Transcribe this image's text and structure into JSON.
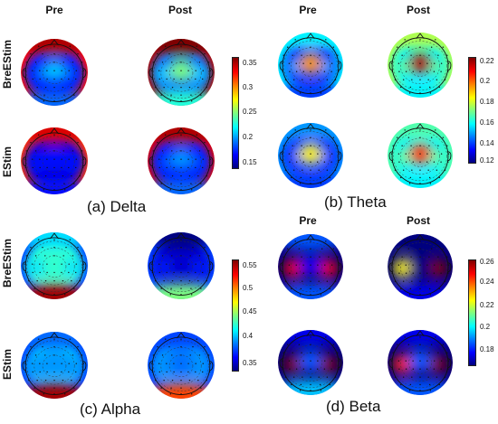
{
  "columns": {
    "pre": "Pre",
    "post": "Post"
  },
  "rows": {
    "breestim": "BreEStim",
    "estim": "EStim"
  },
  "panels": [
    {
      "id": "delta",
      "caption": "(a) Delta",
      "colorbar_ticks": [
        "0.35",
        "0.3",
        "0.25",
        "0.2",
        "0.15"
      ],
      "maps": {
        "breestim_pre": {
          "base": 0.18,
          "edge": 0.34,
          "center": 0.22,
          "left": 0.19,
          "right": 0.19,
          "front": 0.36,
          "back": 0.2
        },
        "breestim_post": {
          "base": 0.2,
          "edge": 0.36,
          "center": 0.26,
          "left": 0.22,
          "right": 0.22,
          "front": 0.37,
          "back": 0.24
        },
        "estim_pre": {
          "base": 0.17,
          "edge": 0.33,
          "center": 0.18,
          "left": 0.18,
          "right": 0.18,
          "front": 0.35,
          "back": 0.18
        },
        "estim_post": {
          "base": 0.18,
          "edge": 0.35,
          "center": 0.21,
          "left": 0.19,
          "right": 0.19,
          "front": 0.36,
          "back": 0.2
        }
      }
    },
    {
      "id": "theta",
      "caption": "(b) Theta",
      "colorbar_ticks": [
        "0.22",
        "0.2",
        "0.18",
        "0.16",
        "0.14",
        "0.12"
      ],
      "maps": {
        "breestim_pre": {
          "base": 0.14,
          "edge": 0.16,
          "center": 0.2,
          "left": 0.15,
          "right": 0.15,
          "front": 0.16,
          "back": 0.14
        },
        "breestim_post": {
          "base": 0.16,
          "edge": 0.18,
          "center": 0.225,
          "left": 0.17,
          "right": 0.17,
          "front": 0.18,
          "back": 0.16
        },
        "estim_pre": {
          "base": 0.14,
          "edge": 0.15,
          "center": 0.19,
          "left": 0.14,
          "right": 0.14,
          "front": 0.15,
          "back": 0.14
        },
        "estim_post": {
          "base": 0.16,
          "edge": 0.17,
          "center": 0.21,
          "left": 0.17,
          "right": 0.17,
          "front": 0.17,
          "back": 0.16
        }
      }
    },
    {
      "id": "alpha",
      "caption": "(c) Alpha",
      "colorbar_ticks": [
        "0.55",
        "0.5",
        "0.45",
        "0.4",
        "0.35"
      ],
      "maps": {
        "breestim_pre": {
          "base": 0.42,
          "edge": 0.36,
          "center": 0.42,
          "left": 0.4,
          "right": 0.4,
          "front": 0.4,
          "back": 0.56
        },
        "breestim_post": {
          "base": 0.33,
          "edge": 0.36,
          "center": 0.33,
          "left": 0.35,
          "right": 0.35,
          "front": 0.31,
          "back": 0.44
        },
        "estim_pre": {
          "base": 0.39,
          "edge": 0.36,
          "center": 0.38,
          "left": 0.38,
          "right": 0.38,
          "front": 0.37,
          "back": 0.56
        },
        "estim_post": {
          "base": 0.38,
          "edge": 0.36,
          "center": 0.37,
          "left": 0.38,
          "right": 0.38,
          "front": 0.36,
          "back": 0.52
        }
      }
    },
    {
      "id": "beta",
      "caption": "(d) Beta",
      "colorbar_ticks": [
        "0.26",
        "0.24",
        "0.22",
        "0.2",
        "0.18"
      ],
      "maps": {
        "breestim_pre": {
          "base": 0.17,
          "edge": 0.17,
          "center": 0.18,
          "left": 0.255,
          "right": 0.255,
          "front": 0.19,
          "back": 0.19
        },
        "breestim_post": {
          "base": 0.17,
          "edge": 0.17,
          "center": 0.17,
          "left": 0.23,
          "right": 0.265,
          "front": 0.17,
          "back": 0.18
        },
        "estim_pre": {
          "base": 0.17,
          "edge": 0.17,
          "center": 0.19,
          "left": 0.265,
          "right": 0.265,
          "front": 0.18,
          "back": 0.2
        },
        "estim_post": {
          "base": 0.17,
          "edge": 0.17,
          "center": 0.19,
          "left": 0.25,
          "right": 0.265,
          "front": 0.18,
          "back": 0.19
        }
      }
    }
  ]
}
